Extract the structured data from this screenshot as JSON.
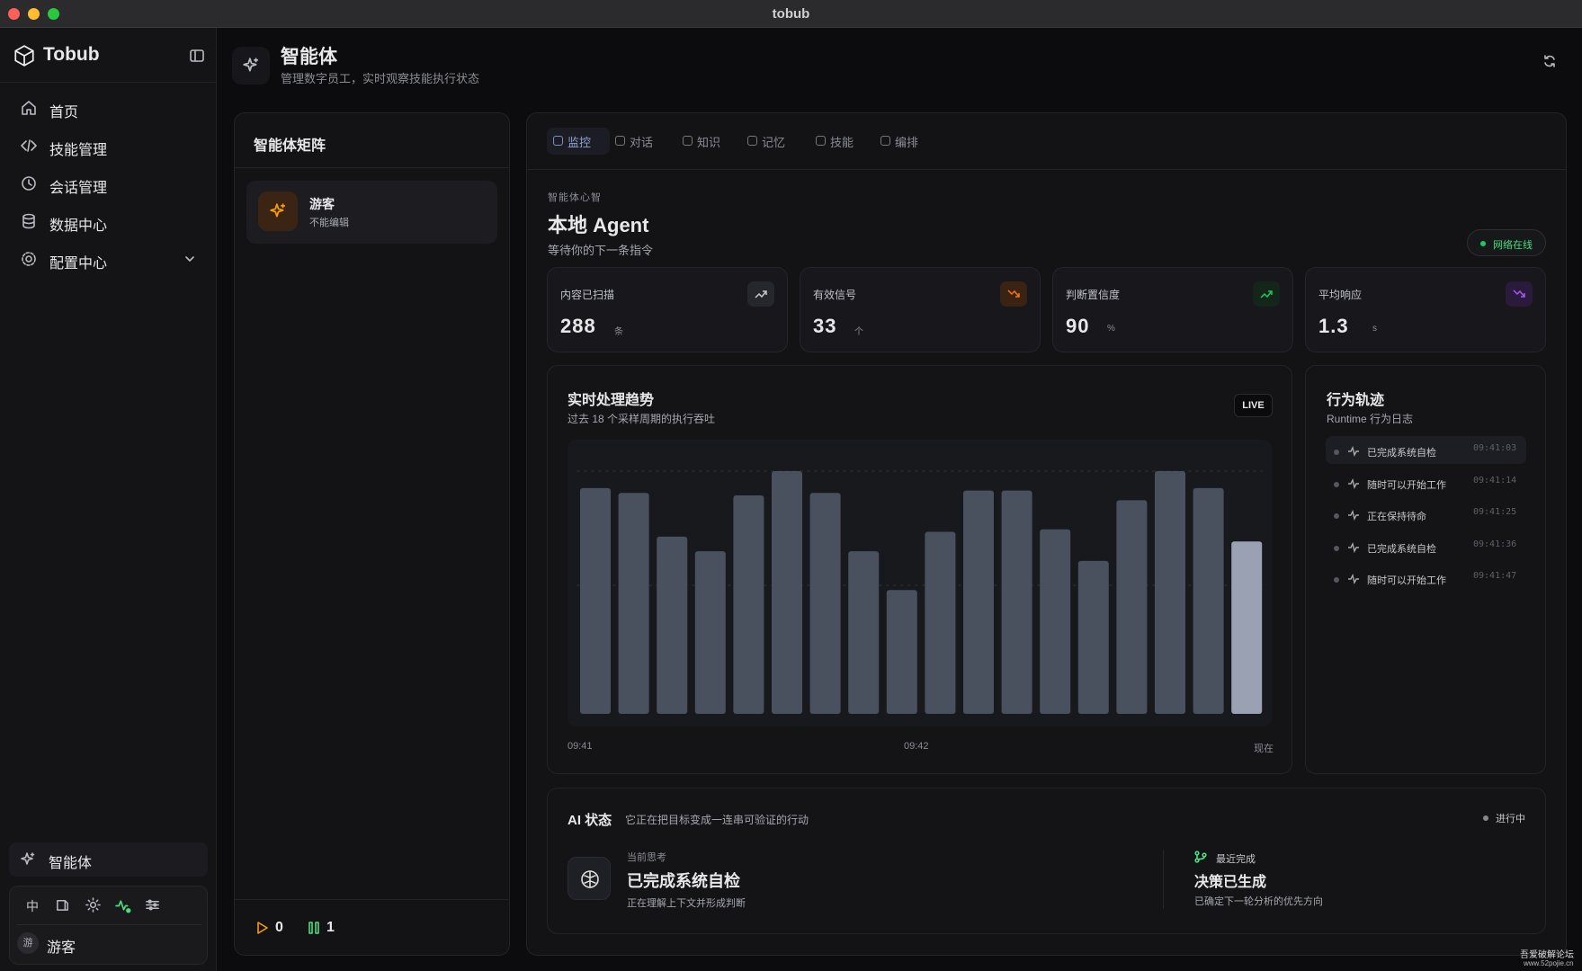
{
  "window": {
    "title": "tobub"
  },
  "sidebar": {
    "brand": "Tobub",
    "nav": [
      "首页",
      "技能管理",
      "会话管理",
      "数据中心",
      "配置中心"
    ],
    "active": "智能体",
    "lang": "中",
    "user": {
      "avatar": "游",
      "name": "游客"
    }
  },
  "header": {
    "title": "智能体",
    "subtitle": "管理数字员工，实时观察技能执行状态"
  },
  "matrix": {
    "title": "智能体矩阵",
    "agents": [
      {
        "name": "游客",
        "note": "不能编辑"
      }
    ],
    "running": 0,
    "paused": 1
  },
  "tabs": [
    "监控",
    "对话",
    "知识",
    "记忆",
    "技能",
    "编排"
  ],
  "agent": {
    "eyebrow": "智能体心智",
    "name": "本地 Agent",
    "status": "等待你的下一条指令",
    "network": "网络在线"
  },
  "stats": [
    {
      "label": "内容已扫描",
      "value": 288,
      "unit": "条"
    },
    {
      "label": "有效信号",
      "value": 33,
      "unit": "个"
    },
    {
      "label": "判断置信度",
      "value": 90,
      "unit": "%"
    },
    {
      "label": "平均响应",
      "value": 1.3,
      "unit": "s"
    }
  ],
  "trend": {
    "type": "bar",
    "title": "实时处理趋势",
    "subtitle": "过去 18 个采样周期的执行吞吐",
    "badge": "LIVE",
    "values": [
      93,
      91,
      73,
      67,
      90,
      100,
      91,
      67,
      51,
      75,
      92,
      92,
      76,
      63,
      88,
      100,
      93,
      71
    ],
    "ylim": [
      0,
      100
    ],
    "color": "#4a515e",
    "highlight_color": "#9aa1b2",
    "x_labels": [
      "09:41",
      "09:42",
      "现在"
    ]
  },
  "log": {
    "title": "行为轨迹",
    "subtitle": "Runtime 行为日志",
    "entries": [
      {
        "text": "已完成系统自检",
        "time": "09:41:03"
      },
      {
        "text": "随时可以开始工作",
        "time": "09:41:14"
      },
      {
        "text": "正在保持待命",
        "time": "09:41:25"
      },
      {
        "text": "已完成系统自检",
        "time": "09:41:36"
      },
      {
        "text": "随时可以开始工作",
        "time": "09:41:47"
      }
    ]
  },
  "ai": {
    "title": "AI 状态",
    "subtitle": "它正在把目标变成一连串可验证的行动",
    "state": "进行中",
    "current": {
      "label": "当前思考",
      "text": "已完成系统自检",
      "detail": "正在理解上下文并形成判断"
    },
    "latest": {
      "label": "最近完成",
      "text": "决策已生成",
      "detail": "已确定下一轮分析的优先方向"
    }
  },
  "watermark": [
    "吾爱破解论坛",
    "www.52pojie.cn"
  ]
}
